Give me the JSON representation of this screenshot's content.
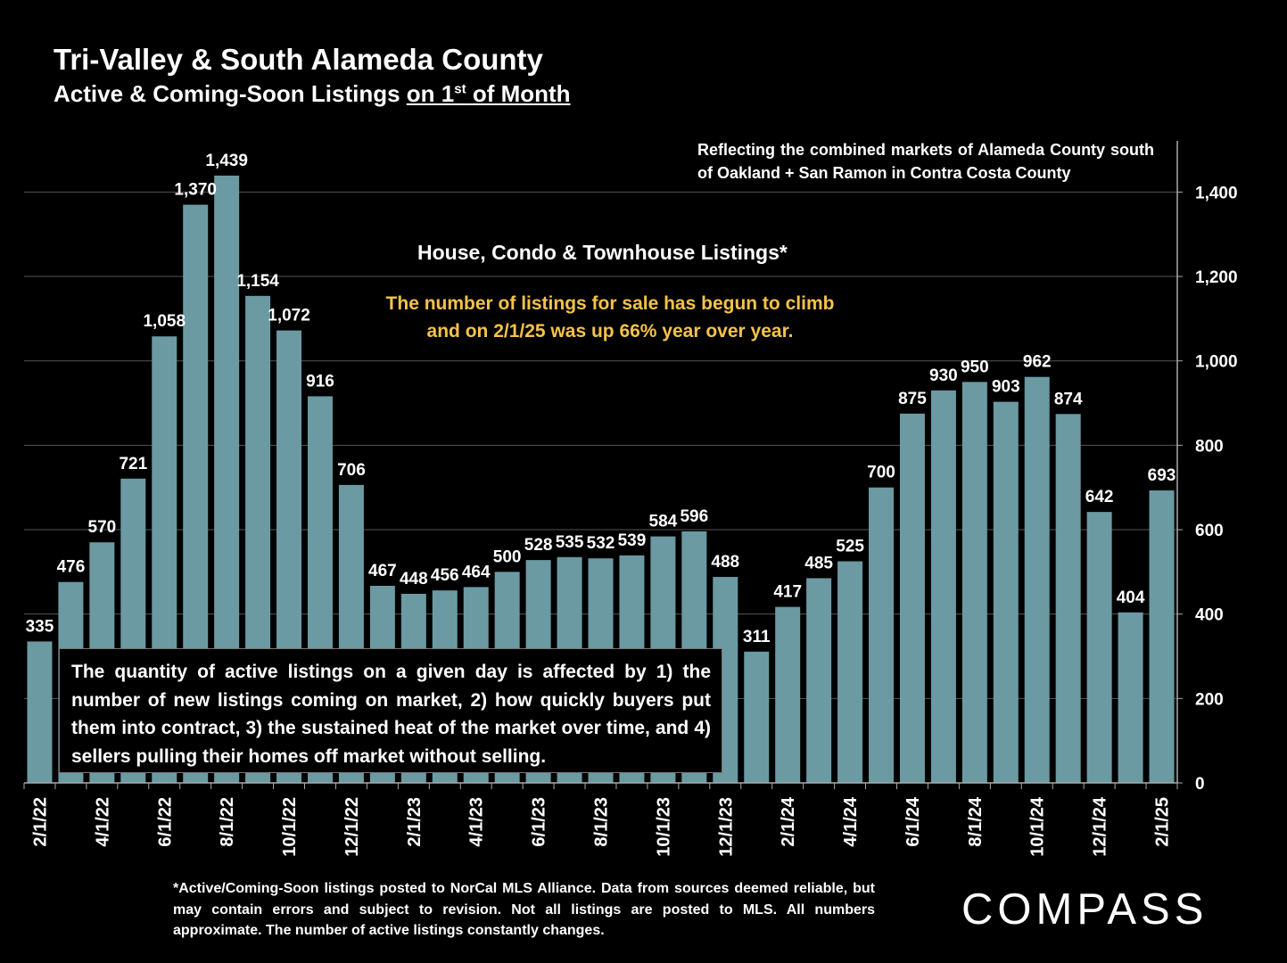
{
  "title": "Tri-Valley & South Alameda County",
  "subtitle": {
    "main": "Active & Coming-Soon Listings ",
    "underlined_pre": "on 1",
    "sup": "st",
    "underlined_post": " of Month"
  },
  "note_top": "Reflecting the combined markets of Alameda County south of Oakland + San Ramon in Contra Costa County",
  "heading": "House, Condo & Townhouse Listings*",
  "highlight": {
    "line1": "The number of listings for sale has begun to climb",
    "line2": "and on 2/1/25 was up 66% year over year.",
    "color": "#f5c34a"
  },
  "box_text": "The quantity of active listings on a given day is affected by 1) the number of new listings coming on market, 2) how quickly buyers put them into contract, 3) the sustained heat of the market over time, and 4) sellers pulling their homes off market without selling.",
  "footnote": "*Active/Coming-Soon listings posted to NorCal MLS Alliance.  Data from sources deemed reliable, but may contain errors and subject to revision.  Not all listings are posted to MLS. All numbers approximate. The number of active listings constantly changes.",
  "logo": "COMPASS",
  "chart_data": {
    "type": "bar",
    "categories": [
      "2/1/22",
      "3/1/22",
      "4/1/22",
      "5/1/22",
      "6/1/22",
      "7/1/22",
      "8/1/22",
      "9/1/22",
      "10/1/22",
      "11/1/22",
      "12/1/22",
      "1/1/23",
      "2/1/23",
      "3/1/23",
      "4/1/23",
      "5/1/23",
      "6/1/23",
      "7/1/23",
      "8/1/23",
      "9/1/23",
      "10/1/23",
      "11/1/23",
      "12/1/23",
      "1/1/24",
      "2/1/24",
      "3/1/24",
      "4/1/24",
      "5/1/24",
      "6/1/24",
      "7/1/24",
      "8/1/24",
      "9/1/24",
      "10/1/24",
      "11/1/24",
      "12/1/24",
      "1/1/25",
      "2/1/25"
    ],
    "tick_labels_shown": [
      "2/1/22",
      "4/1/22",
      "6/1/22",
      "8/1/22",
      "10/1/22",
      "12/1/22",
      "2/1/23",
      "4/1/23",
      "6/1/23",
      "8/1/23",
      "10/1/23",
      "12/1/23",
      "2/1/24",
      "4/1/24",
      "6/1/24",
      "8/1/24",
      "10/1/24",
      "12/1/24",
      "2/1/25"
    ],
    "values": [
      335,
      476,
      570,
      721,
      1058,
      1370,
      1439,
      1154,
      1072,
      916,
      706,
      467,
      448,
      456,
      464,
      500,
      528,
      535,
      532,
      539,
      584,
      596,
      488,
      311,
      417,
      485,
      525,
      700,
      875,
      930,
      950,
      903,
      962,
      874,
      642,
      404,
      693
    ],
    "data_labels": [
      "335",
      "476",
      "570",
      "721",
      "1,058",
      "1,370",
      "1,439",
      "1,154",
      "1,072",
      "916",
      "706",
      "467",
      "448",
      "456",
      "464",
      "500",
      "528",
      "535",
      "532",
      "539",
      "584",
      "596",
      "488",
      "311",
      "417",
      "485",
      "525",
      "700",
      "875",
      "930",
      "950",
      "903",
      "962",
      "874",
      "642",
      "404",
      "693"
    ],
    "y_ticks": [
      "0",
      "200",
      "400",
      "600",
      "800",
      "1,000",
      "1,200",
      "1,400"
    ],
    "ylim": [
      0,
      1525
    ],
    "y_axis_side": "right",
    "grid": true,
    "bar_color": "#6b9aa3",
    "grid_color": "#555555"
  }
}
